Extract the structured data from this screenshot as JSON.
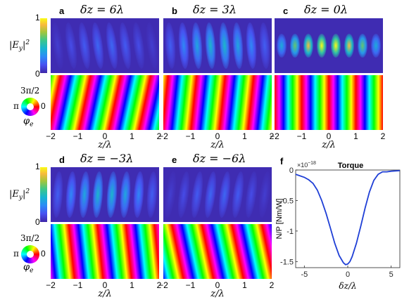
{
  "panels": [
    {
      "letter": "a",
      "title": "δz = 6λ",
      "delta": 6
    },
    {
      "letter": "b",
      "title": "δz = 3λ",
      "delta": 3
    },
    {
      "letter": "c",
      "title": "δz = 0λ",
      "delta": 0
    },
    {
      "letter": "d",
      "title": "δz = −3λ",
      "delta": -3
    },
    {
      "letter": "e",
      "title": "δz = −6λ",
      "delta": -6
    }
  ],
  "field_colorbar": {
    "label": "|Ey|2",
    "max": "1",
    "min": "0"
  },
  "phase_colorbar": {
    "label": "φe",
    "top": "3π/2",
    "left": "π",
    "right": "0"
  },
  "xticks": [
    "−2",
    "−1",
    "0",
    "1",
    "2"
  ],
  "xlabel": "z/λ",
  "torque": {
    "letter": "f",
    "title": "Torque",
    "exponent": "×10",
    "exponent_power": "−18",
    "ylabel": "N/P [Nm/W]",
    "xlabel": "δz/λ",
    "yticks": [
      "0",
      "-0.5",
      "-1",
      "-1.5"
    ],
    "xticks": [
      "-5",
      "0",
      "5"
    ],
    "color": "#1f3fd6"
  },
  "chart_data": [
    {
      "type": "line",
      "title": "Torque",
      "xlabel": "δz/λ",
      "ylabel": "N/P [Nm/W]",
      "y_multiplier": "1e-18",
      "xlim": [
        -6,
        6
      ],
      "ylim": [
        -1.6,
        0
      ],
      "series": [
        {
          "x": [
            -6,
            -5,
            -4.5,
            -4,
            -3.5,
            -3,
            -2.5,
            -2,
            -1.5,
            -1,
            -0.5,
            -0.25,
            0,
            0.25,
            0.5,
            1,
            1.5,
            2,
            2.5,
            3,
            3.5,
            4,
            4.5,
            5,
            6
          ],
          "y": [
            -0.07,
            -0.12,
            -0.16,
            -0.22,
            -0.33,
            -0.5,
            -0.71,
            -0.95,
            -1.2,
            -1.4,
            -1.52,
            -1.55,
            -1.54,
            -1.5,
            -1.42,
            -1.2,
            -0.92,
            -0.62,
            -0.36,
            -0.17,
            -0.07,
            -0.03,
            -0.03,
            -0.02,
            -0.01
          ]
        }
      ]
    }
  ]
}
